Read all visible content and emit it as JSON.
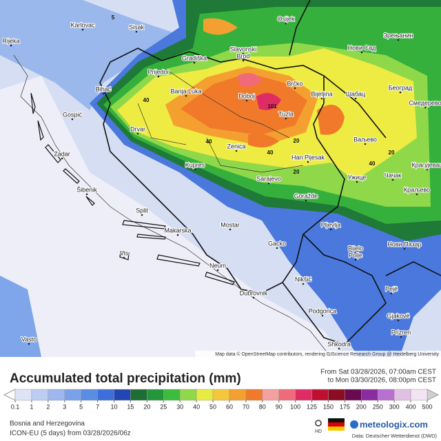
{
  "map": {
    "cities": [
      "Karlovac",
      "Sisak",
      "Osijek",
      "Зрењанин",
      "Rijeka",
      "Gradiška",
      "Slavonski",
      "Brod",
      "Нови Сад",
      "Prijedor",
      "Bihać",
      "Banja Luka",
      "Doboj",
      "Brčko",
      "Bijeljina",
      "Шабац",
      "Београд",
      "Смедерево",
      "Gospić",
      "Tuzla",
      "Drvar",
      "Zenica",
      "Ваљево",
      "Zadar",
      "Han Pijesak",
      "Kupres",
      "Крагујевац",
      "Sarajevo",
      "Ужице",
      "Чачак",
      "Šibenik",
      "Goražde",
      "Краљево",
      "Split",
      "Mostar",
      "Pljevlja",
      "Makarska",
      "Bijelo",
      "Polje",
      "Нови Пазар",
      "Gacko",
      "Vis",
      "Neum",
      "Nikšić",
      "Pejë",
      "Dubrovnik",
      "Podgorica",
      "Gjakovë",
      "Prizren",
      "Vasto",
      "Shkodra"
    ],
    "contour_labels": [
      5,
      40,
      101,
      40,
      40,
      40,
      20,
      20,
      20
    ],
    "attribution": "Map data © OpenStreetMap contributors, rendering GIScience Research Group @ Heidelberg University"
  },
  "footer": {
    "title": "Accumulated total precipitation (mm)",
    "period_from": "From Sat 03/28/2026, 07:00am CEST",
    "period_to": "to Mon 03/30/2026, 08:00pm CEST",
    "legend_values": [
      0.1,
      1,
      2,
      3,
      5,
      7,
      10,
      15,
      20,
      25,
      30,
      40,
      50,
      60,
      70,
      80,
      90,
      100,
      125,
      150,
      175,
      200,
      250,
      300,
      400,
      500
    ],
    "legend_colors": [
      "#dfe3f6",
      "#bccdf2",
      "#9cb8ee",
      "#7aa2ea",
      "#5a8ce4",
      "#3c70d8",
      "#2446b4",
      "#1c6e34",
      "#24963a",
      "#3cbc3c",
      "#8fd84a",
      "#e8ec40",
      "#f4c83a",
      "#f4a030",
      "#f07a2a",
      "#f4a0a0",
      "#f06a7a",
      "#e02c64",
      "#c01030",
      "#8c0c24",
      "#6a0a50",
      "#8a2ca0",
      "#b870d0",
      "#e2c0e6",
      "#f2e4f2"
    ],
    "region": "Bosnia and Herzegovina",
    "model": "ICON-EU (5 days) from 03/28/2026/06z",
    "hd": "HD",
    "brand": "meteologix.com",
    "source": "Data: Deutscher Wetterdienst (DWD)"
  }
}
